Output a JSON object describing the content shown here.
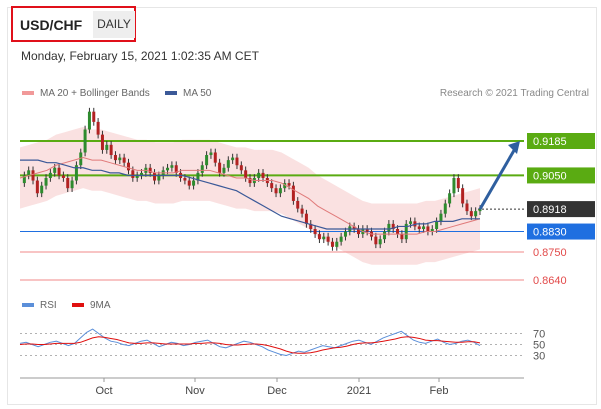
{
  "header": {
    "symbol": "USD/CHF",
    "period": "DAILY",
    "datetime": "Monday, February 15, 2021 1:02:35 AM CET"
  },
  "legend": {
    "ma20_label": "MA 20 + Bollinger Bands",
    "ma50_label": "MA 50",
    "credit": "Research © 2021 Trading Central"
  },
  "rsi_legend": {
    "rsi_label": "RSI",
    "ma_label": "9MA"
  },
  "colors": {
    "up_candle": "#2e8b2e",
    "down_candle": "#b22222",
    "bollinger": "#f6c9c9",
    "ma20": "#e07a7a",
    "ma50": "#3b5998",
    "resistance": "#5aab12",
    "pivot": "#333333",
    "support1": "#1f6fe0",
    "support2": "#e24a4a",
    "arrow": "#2f5f9f",
    "rsi": "#5b8fd9",
    "rsi_ma": "#e0100f"
  },
  "chart_data": {
    "type": "candlestick",
    "x_ticks": [
      "Oct",
      "Nov",
      "Dec",
      "2021",
      "Feb"
    ],
    "price_levels": [
      {
        "label": "0.9185",
        "value": 0.9185,
        "kind": "resistance"
      },
      {
        "label": "0.9050",
        "value": 0.905,
        "kind": "resistance"
      },
      {
        "label": "0.8918",
        "value": 0.8918,
        "kind": "last"
      },
      {
        "label": "0.8830",
        "value": 0.883,
        "kind": "support"
      },
      {
        "label": "0.8750",
        "value": 0.875,
        "kind": "support"
      },
      {
        "label": "0.8640",
        "value": 0.864,
        "kind": "support"
      }
    ],
    "close_series": [
      0.902,
      0.905,
      0.907,
      0.903,
      0.898,
      0.901,
      0.904,
      0.906,
      0.908,
      0.905,
      0.904,
      0.9,
      0.903,
      0.909,
      0.914,
      0.923,
      0.93,
      0.926,
      0.921,
      0.915,
      0.917,
      0.913,
      0.911,
      0.912,
      0.91,
      0.907,
      0.904,
      0.905,
      0.906,
      0.908,
      0.906,
      0.903,
      0.905,
      0.907,
      0.908,
      0.909,
      0.906,
      0.904,
      0.903,
      0.901,
      0.903,
      0.906,
      0.909,
      0.913,
      0.914,
      0.91,
      0.906,
      0.908,
      0.911,
      0.912,
      0.909,
      0.907,
      0.904,
      0.902,
      0.904,
      0.906,
      0.904,
      0.902,
      0.9,
      0.898,
      0.9,
      0.902,
      0.901,
      0.895,
      0.892,
      0.89,
      0.886,
      0.884,
      0.882,
      0.88,
      0.881,
      0.879,
      0.877,
      0.879,
      0.881,
      0.883,
      0.885,
      0.884,
      0.882,
      0.884,
      0.883,
      0.881,
      0.878,
      0.88,
      0.883,
      0.886,
      0.884,
      0.882,
      0.88,
      0.886,
      0.887,
      0.885,
      0.884,
      0.885,
      0.883,
      0.884,
      0.887,
      0.89,
      0.894,
      0.898,
      0.904,
      0.9,
      0.894,
      0.891,
      0.889,
      0.891,
      0.8918
    ],
    "ma20_series": [
      0.904,
      0.905,
      0.906,
      0.907,
      0.909,
      0.91,
      0.911,
      0.912,
      0.911,
      0.911,
      0.91,
      0.909,
      0.908,
      0.907,
      0.907,
      0.906,
      0.906,
      0.906,
      0.907,
      0.907,
      0.907,
      0.907,
      0.906,
      0.905,
      0.904,
      0.904,
      0.903,
      0.903,
      0.903,
      0.902,
      0.9,
      0.898,
      0.896,
      0.893,
      0.891,
      0.889,
      0.887,
      0.885,
      0.883,
      0.882,
      0.882,
      0.882,
      0.882,
      0.882,
      0.882,
      0.883,
      0.883,
      0.884,
      0.885,
      0.886,
      0.887,
      0.888
    ],
    "ma50_series": [
      0.911,
      0.911,
      0.911,
      0.91,
      0.91,
      0.909,
      0.908,
      0.908,
      0.907,
      0.907,
      0.906,
      0.906,
      0.905,
      0.905,
      0.905,
      0.905,
      0.905,
      0.905,
      0.905,
      0.904,
      0.903,
      0.902,
      0.901,
      0.9,
      0.899,
      0.897,
      0.895,
      0.893,
      0.891,
      0.889,
      0.888,
      0.887,
      0.886,
      0.885,
      0.884,
      0.884,
      0.884,
      0.884,
      0.884,
      0.884,
      0.884,
      0.884,
      0.885,
      0.885,
      0.886,
      0.886,
      0.887,
      0.887,
      0.887,
      0.888,
      0.888,
      0.888
    ],
    "forecast_arrow": {
      "from": 0.8918,
      "to": 0.9185
    },
    "rsi_levels": [
      70,
      50,
      30
    ],
    "rsi_series": [
      52,
      54,
      50,
      46,
      50,
      54,
      56,
      52,
      48,
      52,
      62,
      72,
      78,
      70,
      62,
      56,
      54,
      50,
      48,
      52,
      56,
      58,
      52,
      46,
      50,
      54,
      52,
      48,
      50,
      54,
      56,
      58,
      52,
      46,
      44,
      48,
      52,
      56,
      54,
      50,
      46,
      40,
      36,
      32,
      30,
      34,
      38,
      36,
      40,
      44,
      48,
      46,
      44,
      48,
      52,
      56,
      58,
      54,
      50,
      56,
      62,
      66,
      70,
      74,
      66,
      58,
      54,
      52,
      56,
      60,
      54,
      50,
      52,
      56,
      58,
      54,
      48
    ],
    "rsi_ma_series": [
      50,
      51,
      51,
      50,
      50,
      51,
      52,
      52,
      52,
      52,
      54,
      58,
      62,
      64,
      63,
      61,
      59,
      56,
      53,
      52,
      52,
      53,
      53,
      52,
      51,
      51,
      51,
      51,
      51,
      52,
      52,
      53,
      53,
      52,
      50,
      49,
      49,
      50,
      51,
      51,
      50,
      48,
      45,
      42,
      38,
      35,
      34,
      34,
      35,
      37,
      40,
      42,
      44,
      45,
      47,
      50,
      52,
      53,
      53,
      54,
      56,
      58,
      60,
      63,
      64,
      63,
      61,
      58,
      57,
      57,
      56,
      55,
      54,
      54,
      55,
      55,
      53
    ]
  }
}
